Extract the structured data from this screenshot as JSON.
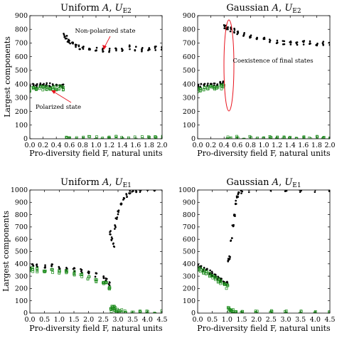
{
  "chart_data": [
    {
      "type": "scatter",
      "title": "Uniform A, U_E2",
      "title_parts": {
        "pre": "Uniform ",
        "var": "A",
        "mid": ", ",
        "u": "U",
        "sub": "E2"
      },
      "xlabel": "Pro-diversity field F, natural units",
      "ylabel": "Largest components",
      "xlim": [
        0,
        2.0
      ],
      "ylim": [
        0,
        900
      ],
      "xticks": [
        "0.0",
        "0.2",
        "0.4",
        "0.6",
        "0.8",
        "1.0",
        "1.2",
        "1.4",
        "1.6",
        "1.8",
        "2.0"
      ],
      "yticks": [
        "0",
        "100",
        "200",
        "300",
        "400",
        "500",
        "600",
        "700",
        "800",
        "900"
      ],
      "series": [
        {
          "marker": "dot",
          "color": "#000000",
          "x": [
            0.0,
            0.05,
            0.1,
            0.15,
            0.2,
            0.25,
            0.3,
            0.35,
            0.4,
            0.45,
            0.5,
            0.52,
            0.55,
            0.58,
            0.6,
            0.65,
            0.7,
            0.75,
            0.8,
            0.9,
            1.0,
            1.1,
            1.2,
            1.3,
            1.4,
            1.5,
            1.6,
            1.7,
            1.8,
            1.9,
            2.0
          ],
          "y": [
            385,
            395,
            390,
            392,
            400,
            395,
            393,
            398,
            390,
            395,
            385,
            755,
            740,
            725,
            705,
            690,
            680,
            670,
            660,
            655,
            650,
            648,
            645,
            660,
            650,
            670,
            660,
            650,
            655,
            660,
            665
          ]
        },
        {
          "marker": "square",
          "color": "#1a8a1a",
          "x": [
            0.0,
            0.05,
            0.1,
            0.15,
            0.2,
            0.25,
            0.3,
            0.35,
            0.4,
            0.45,
            0.5,
            0.55,
            0.6,
            0.7,
            0.8,
            0.9,
            1.0,
            1.1,
            1.2,
            1.3,
            1.4,
            1.5,
            1.6,
            1.7,
            1.8,
            1.9,
            2.0
          ],
          "y": [
            360,
            365,
            362,
            368,
            370,
            372,
            368,
            370,
            372,
            375,
            372,
            3,
            3,
            3,
            3,
            3,
            3,
            3,
            3,
            3,
            3,
            3,
            3,
            3,
            3,
            3,
            3
          ]
        }
      ],
      "annotations": [
        {
          "text": "Non-polarized state",
          "color": "#e8111c"
        },
        {
          "text": "Polarized state",
          "color": "#e8111c"
        }
      ]
    },
    {
      "type": "scatter",
      "title": "Gaussian A, U_E2",
      "title_parts": {
        "pre": "Gaussian ",
        "var": "A",
        "mid": ", ",
        "u": "U",
        "sub": "E2"
      },
      "xlabel": "Pro-diversity field F, natural units",
      "ylabel": "",
      "xlim": [
        0,
        2.0
      ],
      "ylim": [
        0,
        900
      ],
      "xticks": [
        "0.0",
        "0.2",
        "0.4",
        "0.6",
        "0.8",
        "1.0",
        "1.2",
        "1.4",
        "1.6",
        "1.8",
        "2.0"
      ],
      "yticks": [
        "0",
        "100",
        "200",
        "300",
        "400",
        "500",
        "600",
        "700",
        "800",
        "900"
      ],
      "series": [
        {
          "marker": "dot",
          "color": "#000000",
          "x": [
            0.0,
            0.05,
            0.1,
            0.15,
            0.2,
            0.25,
            0.3,
            0.35,
            0.38,
            0.4,
            0.42,
            0.45,
            0.5,
            0.55,
            0.6,
            0.7,
            0.8,
            0.9,
            1.0,
            1.1,
            1.2,
            1.3,
            1.4,
            1.5,
            1.6,
            1.7,
            1.8,
            1.9,
            2.0
          ],
          "y": [
            385,
            390,
            392,
            395,
            398,
            400,
            402,
            405,
            410,
            820,
            815,
            810,
            800,
            790,
            780,
            760,
            745,
            735,
            725,
            715,
            710,
            705,
            705,
            700,
            700,
            698,
            695,
            700,
            698
          ]
        },
        {
          "marker": "square",
          "color": "#1a8a1a",
          "x": [
            0.0,
            0.05,
            0.1,
            0.15,
            0.2,
            0.25,
            0.3,
            0.35,
            0.4,
            0.45,
            0.5,
            0.6,
            0.7,
            0.8,
            0.9,
            1.0,
            1.1,
            1.2,
            1.3,
            1.4,
            1.5,
            1.6,
            1.7,
            1.8,
            1.9,
            2.0
          ],
          "y": [
            360,
            362,
            365,
            368,
            370,
            372,
            375,
            380,
            385,
            3,
            3,
            3,
            3,
            3,
            3,
            3,
            3,
            3,
            3,
            3,
            3,
            3,
            3,
            3,
            3,
            3
          ]
        }
      ],
      "annotations": [
        {
          "text": "Coexistence of final states",
          "color": "#e8111c"
        }
      ]
    },
    {
      "type": "scatter",
      "title": "Uniform A, U_E1",
      "title_parts": {
        "pre": "Uniform ",
        "var": "A",
        "mid": ", ",
        "u": "U",
        "sub": "E1"
      },
      "xlabel": "Pro-diversity field F, natural units",
      "ylabel": "Largest components",
      "xlim": [
        0,
        4.5
      ],
      "ylim": [
        0,
        1000
      ],
      "xticks": [
        "0.0",
        "0.5",
        "1.0",
        "1.5",
        "2.0",
        "2.5",
        "3.0",
        "3.5",
        "4.0",
        "4.5"
      ],
      "yticks": [
        "0",
        "100",
        "200",
        "300",
        "400",
        "500",
        "600",
        "700",
        "800",
        "900",
        "1000"
      ],
      "series": [
        {
          "marker": "dot",
          "color": "#000000",
          "x": [
            0.0,
            0.1,
            0.25,
            0.5,
            0.75,
            1.0,
            1.25,
            1.5,
            1.75,
            2.0,
            2.25,
            2.5,
            2.6,
            2.7,
            2.75,
            2.8,
            2.85,
            2.9,
            2.95,
            3.0,
            3.1,
            3.2,
            3.3,
            3.4,
            3.5,
            3.6,
            3.75,
            4.0,
            4.25,
            4.5
          ],
          "y": [
            380,
            385,
            390,
            385,
            380,
            375,
            365,
            355,
            345,
            330,
            310,
            290,
            270,
            240,
            650,
            600,
            550,
            700,
            770,
            820,
            880,
            920,
            960,
            985,
            990,
            995,
            1000,
            1000,
            1000,
            1000
          ]
        },
        {
          "marker": "square",
          "color": "#1a8a1a",
          "x": [
            0.0,
            0.1,
            0.25,
            0.5,
            0.75,
            1.0,
            1.25,
            1.5,
            1.75,
            2.0,
            2.25,
            2.5,
            2.6,
            2.7,
            2.75,
            2.8,
            2.85,
            2.9,
            2.95,
            3.0,
            3.1,
            3.25,
            3.5,
            3.75,
            4.0,
            4.25,
            4.5
          ],
          "y": [
            350,
            355,
            350,
            345,
            340,
            335,
            330,
            320,
            305,
            290,
            270,
            250,
            235,
            210,
            25,
            45,
            40,
            30,
            20,
            15,
            10,
            8,
            5,
            3,
            3,
            3,
            3
          ]
        }
      ],
      "annotations": []
    },
    {
      "type": "scatter",
      "title": "Gaussian A, U_E1",
      "title_parts": {
        "pre": "Gaussian ",
        "var": "A",
        "mid": ", ",
        "u": "U",
        "sub": "E1"
      },
      "xlabel": "Pro-diversity field F, natural units",
      "ylabel": "",
      "xlim": [
        0,
        4.5
      ],
      "ylim": [
        0,
        1000
      ],
      "xticks": [
        "0.0",
        "0.5",
        "1.0",
        "1.5",
        "2.0",
        "2.5",
        "3.0",
        "3.5",
        "4.0",
        "4.5"
      ],
      "yticks": [
        "0",
        "100",
        "200",
        "300",
        "400",
        "500",
        "600",
        "700",
        "800",
        "900",
        "1000"
      ],
      "series": [
        {
          "marker": "dot",
          "color": "#000000",
          "x": [
            0.0,
            0.1,
            0.2,
            0.3,
            0.4,
            0.5,
            0.6,
            0.7,
            0.8,
            0.9,
            1.0,
            1.05,
            1.1,
            1.15,
            1.2,
            1.25,
            1.3,
            1.35,
            1.4,
            1.5,
            1.75,
            2.0,
            2.5,
            3.0,
            3.5,
            4.0,
            4.5
          ],
          "y": [
            380,
            370,
            355,
            345,
            330,
            320,
            305,
            290,
            275,
            255,
            240,
            430,
            450,
            600,
            700,
            800,
            900,
            950,
            980,
            990,
            995,
            1000,
            1000,
            1000,
            1000,
            1000,
            1000
          ]
        },
        {
          "marker": "square",
          "color": "#1a8a1a",
          "x": [
            0.0,
            0.1,
            0.2,
            0.3,
            0.4,
            0.5,
            0.6,
            0.7,
            0.8,
            0.9,
            1.0,
            1.05,
            1.1,
            1.15,
            1.2,
            1.3,
            1.5,
            2.0,
            2.5,
            3.0,
            3.5,
            4.0,
            4.5
          ],
          "y": [
            360,
            350,
            335,
            325,
            310,
            295,
            280,
            265,
            250,
            230,
            215,
            30,
            25,
            20,
            15,
            8,
            5,
            3,
            3,
            3,
            3,
            3,
            3
          ]
        }
      ],
      "annotations": []
    }
  ]
}
